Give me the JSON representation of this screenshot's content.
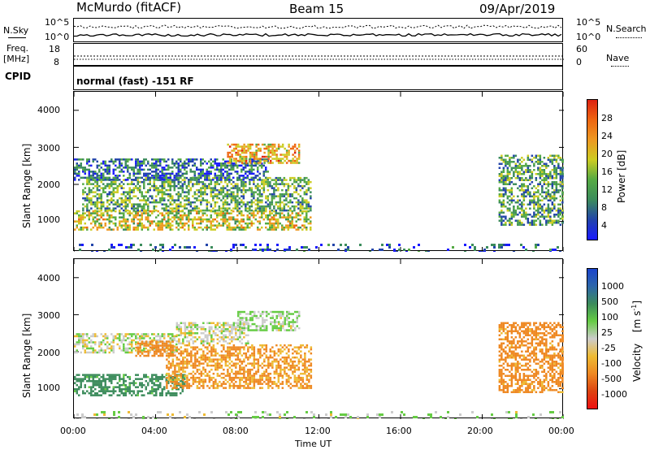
{
  "header": {
    "station": "McMurdo (fitACF)",
    "beam": "Beam 15",
    "date": "09/Apr/2019"
  },
  "sky_panel": {
    "left_label": "N.Sky",
    "right_label": "N.Search",
    "left_ticks": [
      "10^5",
      "10^0"
    ],
    "right_ticks": [
      "10^5",
      "10^0"
    ]
  },
  "freq_panel": {
    "left_label_1": "Freq.",
    "left_label_2": "[MHz]",
    "right_label": "Nave",
    "left_ticks": [
      "18",
      "8"
    ],
    "right_ticks": [
      "60",
      "0"
    ]
  },
  "cpid_panel": {
    "label": "CPID",
    "text": "normal (fast) -151 RF"
  },
  "x_axis": {
    "label": "Time UT",
    "ticks": [
      "00:00",
      "04:00",
      "08:00",
      "12:00",
      "16:00",
      "20:00",
      "00:00"
    ]
  },
  "y_axis": {
    "label": "Slant Range [km]",
    "ticks": [
      "1000",
      "2000",
      "3000",
      "4000"
    ]
  },
  "power_scale": {
    "label": "Power [dB]",
    "ticks": [
      "4",
      "8",
      "12",
      "16",
      "20",
      "24",
      "28"
    ],
    "colors": [
      "#1a1aff",
      "#2244aa",
      "#3c8c5c",
      "#55aa44",
      "#cccc22",
      "#ee9922",
      "#ee6611",
      "#dd2211"
    ]
  },
  "velocity_scale": {
    "label_main": "Velocity",
    "label_unit": "[m s",
    "label_sup": "-1",
    "label_close": "]",
    "ticks": [
      "1000",
      "500",
      "100",
      "25",
      "-25",
      "-100",
      "-500",
      "-1000"
    ],
    "colors": [
      "#1a44cc",
      "#2c66aa",
      "#3c8c5c",
      "#66cc44",
      "#cccccc",
      "#eebb33",
      "#ee8822",
      "#dd4411",
      "#ee1111"
    ]
  },
  "chart_data": {
    "type": "heatmap",
    "title": "McMurdo (fitACF) Beam 15 09/Apr/2019",
    "xlabel": "Time UT",
    "ylabel": "Slant Range [km]",
    "xlim": [
      0,
      24
    ],
    "ylim": [
      180,
      4500
    ],
    "panels": [
      {
        "name": "Power [dB]",
        "colorbar": {
          "ticks": [
            4,
            8,
            12,
            16,
            20,
            24,
            28
          ]
        },
        "echo_bands": [
          {
            "t_start": 0.0,
            "t_end": 11.6,
            "range_start": 800,
            "range_end": 1300,
            "value": 18
          },
          {
            "t_start": 0.4,
            "t_end": 11.6,
            "range_start": 1300,
            "range_end": 2200,
            "value": 13
          },
          {
            "t_start": 0.0,
            "t_end": 9.5,
            "range_start": 2100,
            "range_end": 2700,
            "value": 8
          },
          {
            "t_start": 7.5,
            "t_end": 11.0,
            "range_start": 2600,
            "range_end": 3100,
            "value": 22
          },
          {
            "t_start": 20.8,
            "t_end": 24.0,
            "range_start": 900,
            "range_end": 2800,
            "value": 12
          },
          {
            "t_start": 0.0,
            "t_end": 24.0,
            "range_start": 180,
            "range_end": 400,
            "value": 6
          }
        ]
      },
      {
        "name": "Velocity [m s-1]",
        "colorbar": {
          "ticks": [
            1000,
            500,
            100,
            25,
            -25,
            -100,
            -500,
            -1000
          ]
        },
        "echo_bands": [
          {
            "t_start": 0.0,
            "t_end": 5.4,
            "range_start": 800,
            "range_end": 1400,
            "value": 150
          },
          {
            "t_start": 4.5,
            "t_end": 11.6,
            "range_start": 1000,
            "range_end": 2200,
            "value": -120
          },
          {
            "t_start": 0.0,
            "t_end": 5.0,
            "range_start": 2000,
            "range_end": 2500,
            "value": 0
          },
          {
            "t_start": 3.0,
            "t_end": 4.8,
            "range_start": 1900,
            "range_end": 2300,
            "value": -300
          },
          {
            "t_start": 5.0,
            "t_end": 8.5,
            "range_start": 2200,
            "range_end": 2800,
            "value": 0
          },
          {
            "t_start": 8.0,
            "t_end": 11.0,
            "range_start": 2600,
            "range_end": 3100,
            "value": 30
          },
          {
            "t_start": 20.8,
            "t_end": 24.0,
            "range_start": 900,
            "range_end": 2800,
            "value": -150
          },
          {
            "t_start": 0.0,
            "t_end": 24.0,
            "range_start": 180,
            "range_end": 400,
            "value": 20
          }
        ]
      }
    ]
  }
}
